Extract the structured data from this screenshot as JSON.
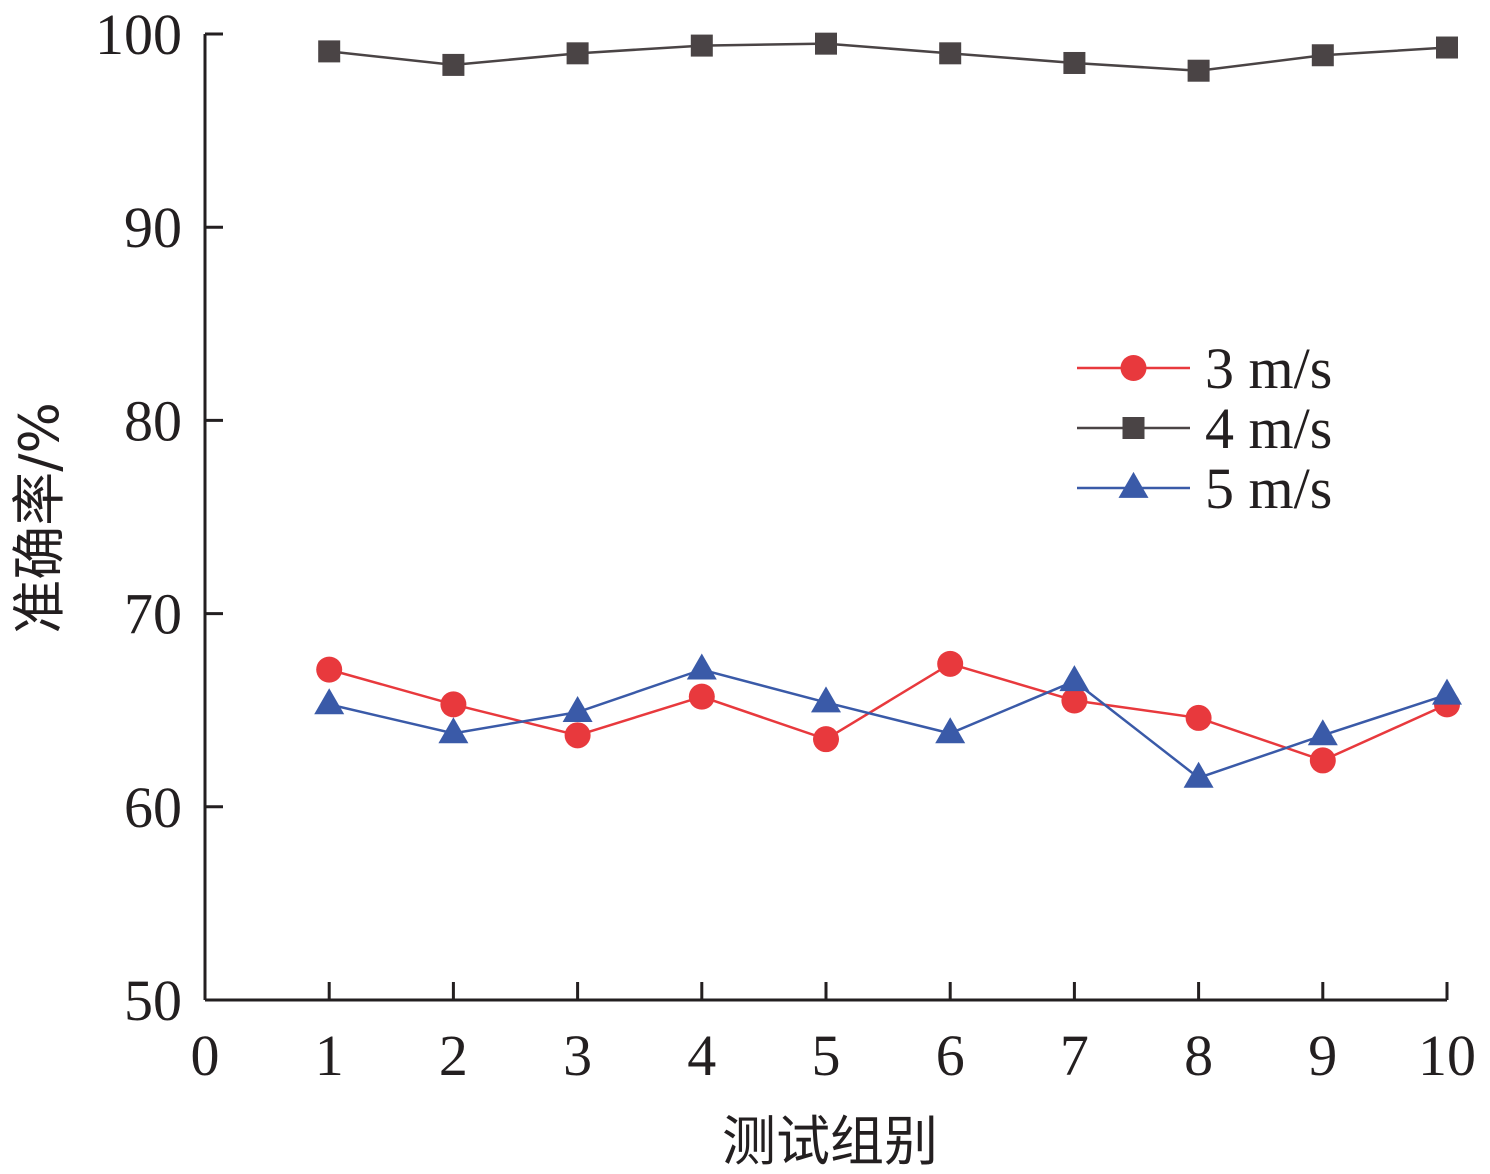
{
  "chart_data": {
    "type": "line",
    "title": "",
    "xlabel": "测试组别",
    "ylabel": "准确率/%",
    "xlim": [
      0,
      10
    ],
    "ylim": [
      50,
      100
    ],
    "xticks": [
      "0",
      "1",
      "2",
      "3",
      "4",
      "5",
      "6",
      "7",
      "8",
      "9",
      "10"
    ],
    "yticks": [
      "50",
      "60",
      "70",
      "80",
      "90",
      "100"
    ],
    "grid": false,
    "legend_position": "right-middle",
    "x": [
      1,
      2,
      3,
      4,
      5,
      6,
      7,
      8,
      9,
      10
    ],
    "series": [
      {
        "name": "3 m/s",
        "marker": "circle",
        "color": "#e8393d",
        "values": [
          67.1,
          65.3,
          63.7,
          65.7,
          63.5,
          67.4,
          65.5,
          64.6,
          62.4,
          65.3
        ]
      },
      {
        "name": "4 m/s",
        "marker": "square",
        "color": "#4a4445",
        "values": [
          99.1,
          98.4,
          99.0,
          99.4,
          99.5,
          99.0,
          98.5,
          98.1,
          98.9,
          99.3
        ]
      },
      {
        "name": "5 m/s",
        "marker": "triangle",
        "color": "#3a5aa8",
        "values": [
          65.3,
          63.8,
          64.9,
          67.1,
          65.4,
          63.8,
          66.5,
          61.5,
          63.7,
          65.8
        ]
      }
    ]
  }
}
